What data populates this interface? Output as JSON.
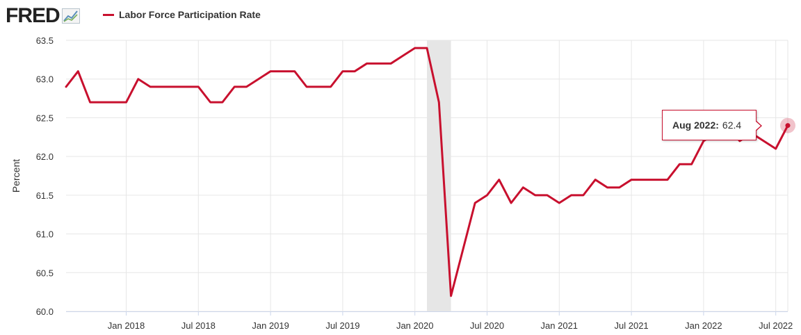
{
  "header": {
    "logo_text": "FRED",
    "legend_label": "Labor Force Participation Rate"
  },
  "tooltip": {
    "date_label": "Aug 2022:",
    "value_label": "62.4"
  },
  "colors": {
    "series": "#c8102e",
    "recession": "#e6e6e6",
    "grid": "#e6e6e6",
    "axis_text": "#333333"
  },
  "chart_data": {
    "type": "line",
    "title": "",
    "xlabel": "",
    "ylabel": "Percent",
    "ylim": [
      60.0,
      63.5
    ],
    "y_ticks": [
      "60.0",
      "60.5",
      "61.0",
      "61.5",
      "62.0",
      "62.5",
      "63.0",
      "63.5"
    ],
    "x_ticks": [
      {
        "label": "Jan 2018",
        "date": "2018-01"
      },
      {
        "label": "Jul 2018",
        "date": "2018-07"
      },
      {
        "label": "Jan 2019",
        "date": "2019-01"
      },
      {
        "label": "Jul 2019",
        "date": "2019-07"
      },
      {
        "label": "Jan 2020",
        "date": "2020-01"
      },
      {
        "label": "Jul 2020",
        "date": "2020-07"
      },
      {
        "label": "Jan 2021",
        "date": "2021-01"
      },
      {
        "label": "Jul 2021",
        "date": "2021-07"
      },
      {
        "label": "Jan 2022",
        "date": "2022-01"
      },
      {
        "label": "Jul 2022",
        "date": "2022-07"
      }
    ],
    "x_range": [
      "2017-08",
      "2022-08"
    ],
    "grid": true,
    "legend": "top-left",
    "recession": {
      "start": "2020-02",
      "end": "2020-04"
    },
    "highlight": {
      "date": "2022-08",
      "value": 62.4
    },
    "series": [
      {
        "name": "Labor Force Participation Rate",
        "dates": [
          "2017-08",
          "2017-09",
          "2017-10",
          "2017-11",
          "2017-12",
          "2018-01",
          "2018-02",
          "2018-03",
          "2018-04",
          "2018-05",
          "2018-06",
          "2018-07",
          "2018-08",
          "2018-09",
          "2018-10",
          "2018-11",
          "2018-12",
          "2019-01",
          "2019-02",
          "2019-03",
          "2019-04",
          "2019-05",
          "2019-06",
          "2019-07",
          "2019-08",
          "2019-09",
          "2019-10",
          "2019-11",
          "2019-12",
          "2020-01",
          "2020-02",
          "2020-03",
          "2020-04",
          "2020-05",
          "2020-06",
          "2020-07",
          "2020-08",
          "2020-09",
          "2020-10",
          "2020-11",
          "2020-12",
          "2021-01",
          "2021-02",
          "2021-03",
          "2021-04",
          "2021-05",
          "2021-06",
          "2021-07",
          "2021-08",
          "2021-09",
          "2021-10",
          "2021-11",
          "2021-12",
          "2022-01",
          "2022-02",
          "2022-03",
          "2022-04",
          "2022-05",
          "2022-06",
          "2022-07",
          "2022-08"
        ],
        "values": [
          62.9,
          63.1,
          62.7,
          62.7,
          62.7,
          62.7,
          63.0,
          62.9,
          62.9,
          62.9,
          62.9,
          62.9,
          62.7,
          62.7,
          62.9,
          62.9,
          63.0,
          63.1,
          63.1,
          63.1,
          62.9,
          62.9,
          62.9,
          63.1,
          63.1,
          63.2,
          63.2,
          63.2,
          63.3,
          63.4,
          63.4,
          62.7,
          60.2,
          60.8,
          61.4,
          61.5,
          61.7,
          61.4,
          61.6,
          61.5,
          61.5,
          61.4,
          61.5,
          61.5,
          61.7,
          61.6,
          61.6,
          61.7,
          61.7,
          61.7,
          61.7,
          61.9,
          61.9,
          62.2,
          62.3,
          62.4,
          62.2,
          62.3,
          62.2,
          62.1,
          62.4
        ]
      }
    ]
  }
}
